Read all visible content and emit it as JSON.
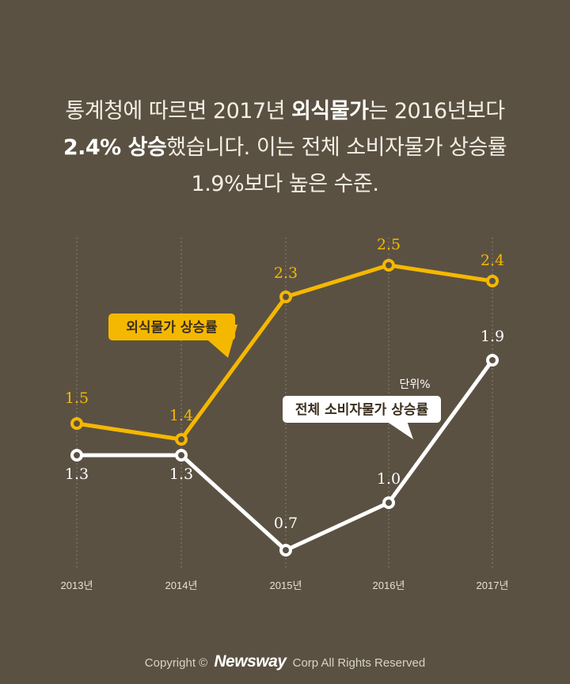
{
  "headline": {
    "line1_a": "통계청에 따르면 2017년 ",
    "line1_b": "외식물가",
    "line1_c": "는 2016년보다",
    "line2_a": "2.4% 상승",
    "line2_b": "했습니다. 이는 전체 소비자물가 상승률",
    "line3": "1.9%보다 높은 수준."
  },
  "chart_data": {
    "type": "line",
    "categories": [
      "2013년",
      "2014년",
      "2015년",
      "2016년",
      "2017년"
    ],
    "unit_label": "단위%",
    "series": [
      {
        "name": "외식물가 상승률",
        "values": [
          1.5,
          1.4,
          2.3,
          2.5,
          2.4
        ],
        "color": "#f5b800"
      },
      {
        "name": "전체 소비자물가 상승률",
        "values": [
          1.3,
          1.3,
          0.7,
          1.0,
          1.9
        ],
        "color": "#ffffff"
      }
    ],
    "value_labels": [
      [
        "1.5",
        "1.4",
        "2.3",
        "2.5",
        "2.4"
      ],
      [
        "1.3",
        "1.3",
        "0.7",
        "1.0",
        "1.9"
      ]
    ],
    "grid": "vertical-dotted",
    "ylim": [
      0.7,
      2.5
    ]
  },
  "footer": {
    "prefix": "Copyright ©",
    "brand": "Newsway",
    "suffix": "Corp All Rights Reserved"
  }
}
